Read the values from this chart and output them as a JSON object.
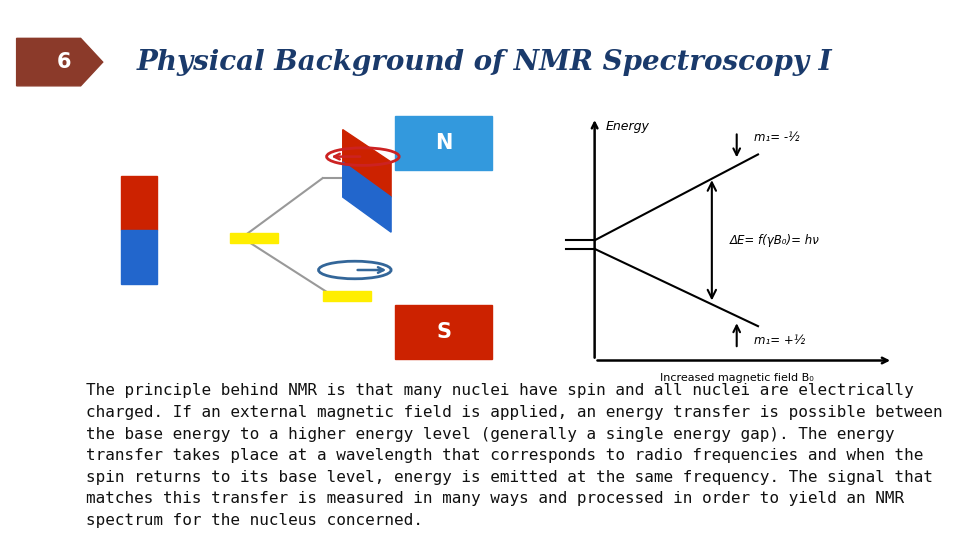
{
  "title": "Physical Background of NMR Spectroscopy I",
  "title_color": "#1a3a6b",
  "title_fontsize": 20,
  "slide_num": "6",
  "slide_num_bg": "#8B3A2A",
  "bg_color": "#ffffff",
  "left_bar_color": "#6b6b52",
  "energy_label": "Energy",
  "xlabel": "Increased magnetic field B₀",
  "m1_top_label": "m₁= -½",
  "m1_bot_label": "m₁= +½",
  "delta_e_label": "ΔE= f(γB₀)= hν",
  "body_text": "The principle behind NMR is that many nuclei have spin and all nuclei are electrically\ncharged. If an external magnetic field is applied, an energy transfer is possible between\nthe base energy to a higher energy level (generally a single energy gap). The energy\ntransfer takes place at a wavelength that corresponds to radio frequencies and when the\nspin returns to its base level, energy is emitted at the same frequency. The signal that\nmatches this transfer is measured in many ways and processed in order to yield an NMR\nspectrum for the nucleus concerned.",
  "body_fontsize": 11.5,
  "body_color": "#111111",
  "diagram_bg": "#0a0a0a",
  "red_color": "#cc2200",
  "blue_color": "#2266cc",
  "N_color": "#3399dd",
  "S_color": "#cc2200",
  "yellow_color": "#ffee00",
  "gray_line": "#999999",
  "spin_red": "#cc2222",
  "spin_blue": "#336699"
}
